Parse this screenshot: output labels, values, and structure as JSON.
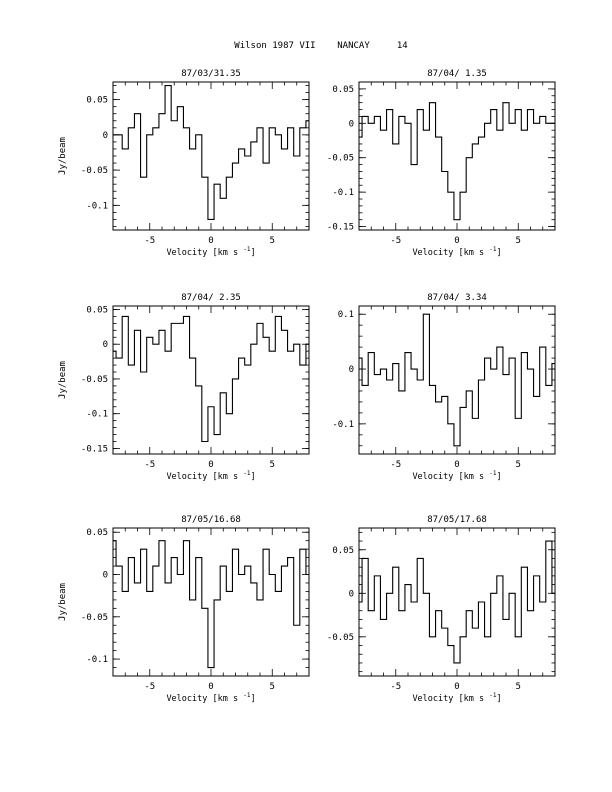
{
  "page_title": "Wilson 1987 VII    NANCAY     14",
  "chart_data": [
    {
      "type": "line",
      "title": "87/03/31.35",
      "xlabel": "Velocity [km s",
      "xlabel_sup": "-1",
      "xlabel_end": "]",
      "ylabel": "Jy/beam",
      "xlim": [
        -8,
        8
      ],
      "ylim": [
        -0.135,
        0.075
      ],
      "xticks": [
        -5,
        0,
        5
      ],
      "yticks": [
        0.05,
        0,
        -0.05,
        -0.1
      ],
      "ytick_labels": [
        "0.05",
        "0",
        "-0.05",
        "-0.1"
      ],
      "series": [
        {
          "x": [
            -8,
            -7.5,
            -7,
            -6.5,
            -6,
            -5.5,
            -5,
            -4.5,
            -4,
            -3.5,
            -3,
            -2.5,
            -2,
            -1.5,
            -1,
            -0.5,
            0,
            0.5,
            1,
            1.5,
            2,
            2.5,
            3,
            3.5,
            4,
            4.5,
            5,
            5.5,
            6,
            6.5,
            7,
            7.5,
            8
          ],
          "values": [
            0.0,
            0.0,
            -0.02,
            0.01,
            0.03,
            -0.06,
            0.0,
            0.01,
            0.03,
            0.07,
            0.02,
            0.04,
            0.01,
            -0.02,
            0.0,
            -0.06,
            -0.12,
            -0.07,
            -0.09,
            -0.06,
            -0.04,
            -0.02,
            -0.03,
            -0.01,
            0.01,
            -0.04,
            0.01,
            0.0,
            -0.02,
            0.01,
            -0.03,
            0.01,
            0.02
          ]
        }
      ]
    },
    {
      "type": "line",
      "title": "87/04/ 1.35",
      "xlabel": "Velocity [km s",
      "xlabel_sup": "-1",
      "xlabel_end": "]",
      "ylabel": "",
      "xlim": [
        -8,
        8
      ],
      "ylim": [
        -0.155,
        0.06
      ],
      "xticks": [
        -5,
        0,
        5
      ],
      "yticks": [
        0.05,
        0,
        -0.05,
        -0.1,
        -0.15
      ],
      "ytick_labels": [
        "0.05",
        "0",
        "-0.05",
        "-0.1",
        "-0.15"
      ],
      "series": [
        {
          "x": [
            -8,
            -7.5,
            -7,
            -6.5,
            -6,
            -5.5,
            -5,
            -4.5,
            -4,
            -3.5,
            -3,
            -2.5,
            -2,
            -1.5,
            -1,
            -0.5,
            0,
            0.5,
            1,
            1.5,
            2,
            2.5,
            3,
            3.5,
            4,
            4.5,
            5,
            5.5,
            6,
            6.5,
            7,
            7.5,
            8
          ],
          "values": [
            -0.02,
            0.01,
            0.0,
            0.01,
            -0.01,
            0.02,
            -0.03,
            0.01,
            0.0,
            -0.06,
            0.02,
            -0.01,
            0.03,
            -0.02,
            -0.07,
            -0.1,
            -0.14,
            -0.1,
            -0.05,
            -0.03,
            -0.02,
            0.0,
            0.02,
            -0.01,
            0.03,
            0.0,
            0.02,
            -0.01,
            0.02,
            0.0,
            0.01,
            0.0,
            0.0
          ]
        }
      ]
    },
    {
      "type": "line",
      "title": "87/04/ 2.35",
      "xlabel": "Velocity [km s",
      "xlabel_sup": "-1",
      "xlabel_end": "]",
      "ylabel": "Jy/beam",
      "xlim": [
        -8,
        8
      ],
      "ylim": [
        -0.158,
        0.055
      ],
      "xticks": [
        -5,
        0,
        5
      ],
      "yticks": [
        0.05,
        0,
        -0.05,
        -0.1,
        -0.15
      ],
      "ytick_labels": [
        "0.05",
        "0",
        "-0.05",
        "-0.1",
        "-0.15"
      ],
      "series": [
        {
          "x": [
            -8,
            -7.5,
            -7,
            -6.5,
            -6,
            -5.5,
            -5,
            -4.5,
            -4,
            -3.5,
            -3,
            -2.5,
            -2,
            -1.5,
            -1,
            -0.5,
            0,
            0.5,
            1,
            1.5,
            2,
            2.5,
            3,
            3.5,
            4,
            4.5,
            5,
            5.5,
            6,
            6.5,
            7,
            7.5,
            8
          ],
          "values": [
            -0.01,
            -0.02,
            0.04,
            -0.03,
            0.02,
            -0.04,
            0.01,
            0.0,
            0.02,
            -0.01,
            0.03,
            0.03,
            0.04,
            -0.02,
            -0.06,
            -0.14,
            -0.09,
            -0.13,
            -0.07,
            -0.1,
            -0.05,
            -0.02,
            -0.03,
            0.0,
            0.03,
            0.01,
            -0.01,
            0.04,
            0.02,
            -0.01,
            0.0,
            -0.03,
            0.0
          ]
        }
      ]
    },
    {
      "type": "line",
      "title": "87/04/ 3.34",
      "xlabel": "Velocity [km s",
      "xlabel_sup": "-1",
      "xlabel_end": "]",
      "ylabel": "",
      "xlim": [
        -8,
        8
      ],
      "ylim": [
        -0.155,
        0.115
      ],
      "xticks": [
        -5,
        0,
        5
      ],
      "yticks": [
        0.1,
        0,
        -0.1
      ],
      "ytick_labels": [
        "0.1",
        "0",
        "-0.1"
      ],
      "series": [
        {
          "x": [
            -8,
            -7.5,
            -7,
            -6.5,
            -6,
            -5.5,
            -5,
            -4.5,
            -4,
            -3.5,
            -3,
            -2.5,
            -2,
            -1.5,
            -1,
            -0.5,
            0,
            0.5,
            1,
            1.5,
            2,
            2.5,
            3,
            3.5,
            4,
            4.5,
            5,
            5.5,
            6,
            6.5,
            7,
            7.5,
            8
          ],
          "values": [
            0.02,
            -0.03,
            0.03,
            -0.01,
            0.0,
            -0.02,
            0.01,
            -0.04,
            0.03,
            0.0,
            -0.02,
            0.1,
            -0.03,
            -0.06,
            -0.05,
            -0.1,
            -0.14,
            -0.07,
            -0.04,
            -0.09,
            -0.02,
            0.02,
            0.0,
            0.04,
            -0.01,
            0.02,
            -0.09,
            0.03,
            0.0,
            -0.05,
            0.04,
            -0.03,
            0.01
          ]
        }
      ]
    },
    {
      "type": "line",
      "title": "87/05/16.68",
      "xlabel": "Velocity [km s",
      "xlabel_sup": "-1",
      "xlabel_end": "]",
      "ylabel": "Jy/beam",
      "xlim": [
        -8,
        8
      ],
      "ylim": [
        -0.12,
        0.055
      ],
      "xticks": [
        -5,
        0,
        5
      ],
      "yticks": [
        0.05,
        0,
        -0.05,
        -0.1
      ],
      "ytick_labels": [
        "0.05",
        "0",
        "-0.05",
        "-0.1"
      ],
      "series": [
        {
          "x": [
            -8,
            -7.5,
            -7,
            -6.5,
            -6,
            -5.5,
            -5,
            -4.5,
            -4,
            -3.5,
            -3,
            -2.5,
            -2,
            -1.5,
            -1,
            -0.5,
            0,
            0.5,
            1,
            1.5,
            2,
            2.5,
            3,
            3.5,
            4,
            4.5,
            5,
            5.5,
            6,
            6.5,
            7,
            7.5,
            8
          ],
          "values": [
            0.04,
            0.01,
            -0.02,
            0.02,
            -0.01,
            0.03,
            -0.02,
            0.01,
            0.04,
            -0.01,
            0.02,
            0.0,
            0.04,
            -0.03,
            0.02,
            -0.04,
            -0.11,
            -0.03,
            0.01,
            -0.02,
            0.03,
            0.0,
            0.01,
            -0.01,
            -0.03,
            0.03,
            0.0,
            -0.02,
            0.01,
            0.02,
            -0.06,
            0.03,
            0.0
          ]
        }
      ]
    },
    {
      "type": "line",
      "title": "87/05/17.68",
      "xlabel": "Velocity [km s",
      "xlabel_sup": "-1",
      "xlabel_end": "]",
      "ylabel": "",
      "xlim": [
        -8,
        8
      ],
      "ylim": [
        -0.095,
        0.075
      ],
      "xticks": [
        -5,
        0,
        5
      ],
      "yticks": [
        0.05,
        0,
        -0.05
      ],
      "ytick_labels": [
        "0.05",
        "0",
        "-0.05"
      ],
      "series": [
        {
          "x": [
            -8,
            -7.5,
            -7,
            -6.5,
            -6,
            -5.5,
            -5,
            -4.5,
            -4,
            -3.5,
            -3,
            -2.5,
            -2,
            -1.5,
            -1,
            -0.5,
            0,
            0.5,
            1,
            1.5,
            2,
            2.5,
            3,
            3.5,
            4,
            4.5,
            5,
            5.5,
            6,
            6.5,
            7,
            7.5,
            8
          ],
          "values": [
            -0.01,
            0.04,
            -0.02,
            0.02,
            -0.03,
            0.0,
            0.03,
            -0.02,
            0.01,
            -0.01,
            0.04,
            0.0,
            -0.05,
            -0.02,
            -0.04,
            -0.06,
            -0.08,
            -0.05,
            -0.02,
            -0.04,
            -0.01,
            -0.05,
            0.0,
            0.02,
            -0.03,
            0.0,
            -0.05,
            0.03,
            -0.02,
            0.02,
            -0.01,
            0.06,
            0.0
          ]
        }
      ]
    }
  ]
}
